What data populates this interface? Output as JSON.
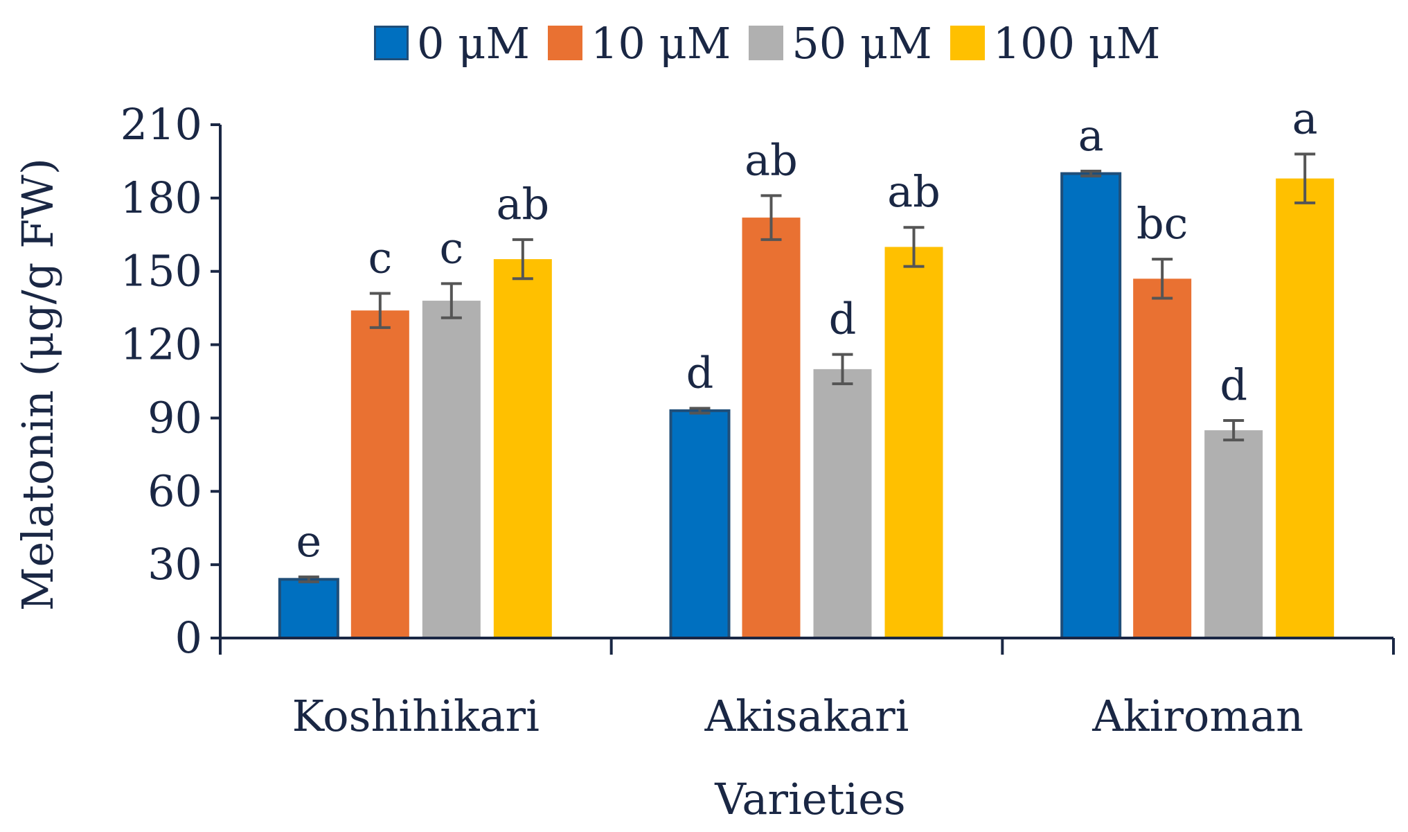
{
  "chart_data": {
    "type": "bar",
    "title": "",
    "xlabel": "Varieties",
    "ylabel": "Melatonin  (μg/g FW)",
    "ylim": [
      0,
      210
    ],
    "yticks": [
      0,
      30,
      60,
      90,
      120,
      150,
      180,
      210
    ],
    "legend_position": "top",
    "categories": [
      "Koshihikari",
      "Akisakari",
      "Akiroman"
    ],
    "series": [
      {
        "name": "0 μM",
        "color": "#0070c0",
        "values": [
          24,
          93,
          190
        ],
        "errors": [
          1,
          1,
          1
        ],
        "labels": [
          "e",
          "d",
          "a"
        ]
      },
      {
        "name": "10 μM",
        "color": "#e97132",
        "values": [
          134,
          172,
          147
        ],
        "errors": [
          7,
          9,
          8
        ],
        "labels": [
          "c",
          "ab",
          "bc"
        ]
      },
      {
        "name": "50 μM",
        "color": "#b0b0b0",
        "values": [
          138,
          110,
          85
        ],
        "errors": [
          7,
          6,
          4
        ],
        "labels": [
          "c",
          "d",
          "d"
        ]
      },
      {
        "name": "100 μM",
        "color": "#ffc000",
        "values": [
          155,
          160,
          188
        ],
        "errors": [
          8,
          8,
          10
        ],
        "labels": [
          "ab",
          "ab",
          "a"
        ]
      }
    ]
  }
}
